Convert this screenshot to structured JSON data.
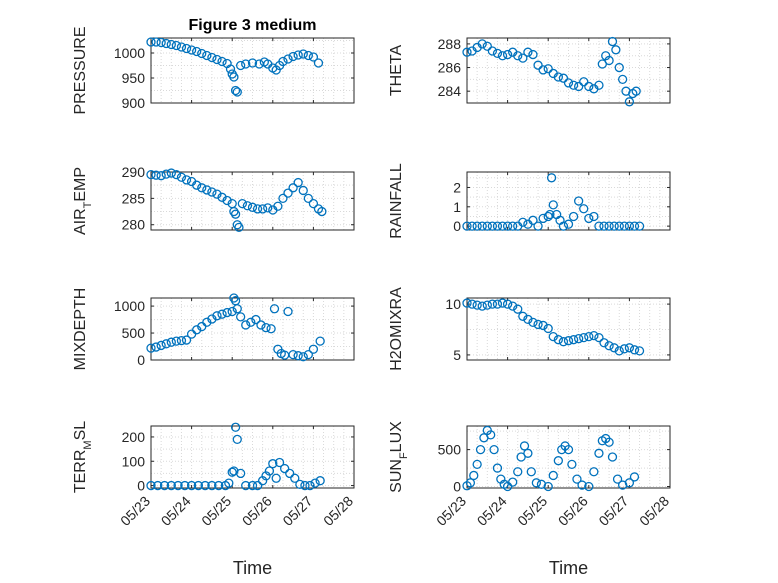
{
  "chart_data": [
    {
      "type": "scatter",
      "title": "Figure 3 medium",
      "ylabel": "PRESSURE",
      "xlabel": "",
      "ylim": [
        900,
        1030
      ],
      "yticks": [
        900,
        950,
        1000
      ],
      "xlim": [
        "05/23",
        "05/27 18:00"
      ],
      "grid": true,
      "marker": "circle",
      "x": [
        "05/23 00:00",
        "05/23 03:00",
        "05/23 06:00",
        "05/23 09:00",
        "05/23 12:00",
        "05/23 15:00",
        "05/23 18:00",
        "05/23 21:00",
        "05/24 00:00",
        "05/24 03:00",
        "05/24 06:00",
        "05/24 09:00",
        "05/24 12:00",
        "05/24 15:00",
        "05/24 18:00",
        "05/24 21:00",
        "05/24 23:00",
        "05/25 00:00",
        "05/25 01:00",
        "05/25 02:00",
        "05/25 03:00",
        "05/25 05:00",
        "05/25 08:00",
        "05/25 12:00",
        "05/25 16:00",
        "05/25 19:00",
        "05/25 21:00",
        "05/26 00:00",
        "05/26 02:00",
        "05/26 04:00",
        "05/26 06:00",
        "05/26 09:00",
        "05/26 12:00",
        "05/26 15:00",
        "05/26 18:00",
        "05/26 21:00",
        "05/27 00:00",
        "05/27 03:00"
      ],
      "y": [
        1022,
        1022,
        1021,
        1019,
        1017,
        1015,
        1012,
        1009,
        1006,
        1003,
        999,
        995,
        991,
        987,
        983,
        979,
        968,
        958,
        952,
        925,
        922,
        975,
        978,
        980,
        978,
        982,
        978,
        970,
        966,
        975,
        983,
        988,
        993,
        996,
        998,
        995,
        992,
        980
      ]
    },
    {
      "type": "scatter",
      "title": "",
      "ylabel": "THETA",
      "xlabel": "",
      "ylim": [
        283,
        288.5
      ],
      "yticks": [
        284,
        286,
        288
      ],
      "xlim": [
        "05/23",
        "05/27 18:00"
      ],
      "grid": true,
      "marker": "circle",
      "x": [
        "05/23 00:00",
        "05/23 03:00",
        "05/23 06:00",
        "05/23 09:00",
        "05/23 12:00",
        "05/23 15:00",
        "05/23 18:00",
        "05/23 21:00",
        "05/24 00:00",
        "05/24 03:00",
        "05/24 06:00",
        "05/24 09:00",
        "05/24 12:00",
        "05/24 15:00",
        "05/24 18:00",
        "05/24 21:00",
        "05/25 00:00",
        "05/25 03:00",
        "05/25 06:00",
        "05/25 09:00",
        "05/25 12:00",
        "05/25 15:00",
        "05/25 18:00",
        "05/25 21:00",
        "05/26 00:00",
        "05/26 03:00",
        "05/26 06:00",
        "05/26 08:00",
        "05/26 10:00",
        "05/26 12:00",
        "05/26 14:00",
        "05/26 16:00",
        "05/26 18:00",
        "05/26 20:00",
        "05/26 22:00",
        "05/27 00:00",
        "05/27 02:00",
        "05/27 04:00"
      ],
      "y": [
        287.3,
        287.4,
        287.7,
        288.0,
        287.8,
        287.4,
        287.2,
        287.0,
        287.1,
        287.3,
        287.0,
        286.8,
        287.3,
        287.1,
        286.2,
        285.8,
        285.9,
        285.5,
        285.2,
        285.1,
        284.7,
        284.5,
        284.4,
        284.8,
        284.4,
        284.2,
        284.5,
        286.3,
        287.0,
        286.6,
        288.2,
        287.5,
        286.0,
        285.0,
        284.0,
        283.1,
        283.8,
        284.0
      ]
    },
    {
      "type": "scatter",
      "title": "",
      "ylabel": "AIR_TEMP",
      "xlabel": "",
      "ylim": [
        279,
        290
      ],
      "yticks": [
        280,
        285,
        290
      ],
      "xlim": [
        "05/23",
        "05/27 18:00"
      ],
      "grid": true,
      "marker": "circle",
      "x": [
        "05/23 00:00",
        "05/23 03:00",
        "05/23 06:00",
        "05/23 09:00",
        "05/23 12:00",
        "05/23 15:00",
        "05/23 18:00",
        "05/23 21:00",
        "05/24 00:00",
        "05/24 03:00",
        "05/24 06:00",
        "05/24 09:00",
        "05/24 12:00",
        "05/24 15:00",
        "05/24 18:00",
        "05/24 21:00",
        "05/25 00:00",
        "05/25 01:00",
        "05/25 02:00",
        "05/25 03:00",
        "05/25 04:00",
        "05/25 06:00",
        "05/25 09:00",
        "05/25 12:00",
        "05/25 15:00",
        "05/25 18:00",
        "05/25 21:00",
        "05/26 00:00",
        "05/26 03:00",
        "05/26 06:00",
        "05/26 09:00",
        "05/26 12:00",
        "05/26 15:00",
        "05/26 18:00",
        "05/26 21:00",
        "05/27 00:00",
        "05/27 03:00",
        "05/27 05:00"
      ],
      "y": [
        289.5,
        289.4,
        289.3,
        289.6,
        289.8,
        289.5,
        289.0,
        288.5,
        288.2,
        287.5,
        287.0,
        286.6,
        286.2,
        285.8,
        285.2,
        284.6,
        284.0,
        282.5,
        282.0,
        280.0,
        279.5,
        284.0,
        283.6,
        283.3,
        283.0,
        283.0,
        283.2,
        282.8,
        283.5,
        285.0,
        286.0,
        287.0,
        288.0,
        286.5,
        285.0,
        284.0,
        283.0,
        282.5
      ]
    },
    {
      "type": "scatter",
      "title": "",
      "ylabel": "RAINFALL",
      "xlabel": "",
      "ylim": [
        -0.2,
        2.8
      ],
      "yticks": [
        0,
        1,
        2
      ],
      "xlim": [
        "05/23",
        "05/27 18:00"
      ],
      "grid": true,
      "marker": "circle",
      "x": [
        "05/23 00:00",
        "05/23 03:00",
        "05/23 06:00",
        "05/23 09:00",
        "05/23 12:00",
        "05/23 15:00",
        "05/23 18:00",
        "05/23 21:00",
        "05/24 00:00",
        "05/24 03:00",
        "05/24 06:00",
        "05/24 09:00",
        "05/24 12:00",
        "05/24 15:00",
        "05/24 18:00",
        "05/24 21:00",
        "05/25 00:00",
        "05/25 01:00",
        "05/25 02:00",
        "05/25 03:00",
        "05/25 05:00",
        "05/25 07:00",
        "05/25 09:00",
        "05/25 12:00",
        "05/25 15:00",
        "05/25 18:00",
        "05/25 21:00",
        "05/26 00:00",
        "05/26 03:00",
        "05/26 06:00",
        "05/26 09:00",
        "05/26 12:00",
        "05/26 15:00",
        "05/26 18:00",
        "05/26 21:00",
        "05/27 00:00",
        "05/27 03:00",
        "05/27 06:00"
      ],
      "y": [
        0,
        0,
        0,
        0,
        0,
        0,
        0,
        0,
        0,
        0,
        0,
        0.2,
        0.1,
        0.3,
        0,
        0.4,
        0.5,
        0.6,
        2.5,
        1.1,
        0.6,
        0.3,
        0,
        0.1,
        0.5,
        1.3,
        0.9,
        0.4,
        0.5,
        0,
        0,
        0,
        0,
        0,
        0,
        0,
        0,
        0
      ]
    },
    {
      "type": "scatter",
      "title": "",
      "ylabel": "MIXDEPTH",
      "xlabel": "",
      "ylim": [
        0,
        1150
      ],
      "yticks": [
        0,
        500,
        1000
      ],
      "xlim": [
        "05/23",
        "05/27 18:00"
      ],
      "grid": true,
      "marker": "circle",
      "x": [
        "05/23 00:00",
        "05/23 03:00",
        "05/23 06:00",
        "05/23 09:00",
        "05/23 12:00",
        "05/23 15:00",
        "05/23 18:00",
        "05/23 21:00",
        "05/24 00:00",
        "05/24 03:00",
        "05/24 06:00",
        "05/24 09:00",
        "05/24 12:00",
        "05/24 15:00",
        "05/24 18:00",
        "05/24 21:00",
        "05/25 00:00",
        "05/25 01:00",
        "05/25 02:00",
        "05/25 03:00",
        "05/25 05:00",
        "05/25 08:00",
        "05/25 11:00",
        "05/25 14:00",
        "05/25 17:00",
        "05/25 20:00",
        "05/25 23:00",
        "05/26 01:00",
        "05/26 03:00",
        "05/26 05:00",
        "05/26 07:00",
        "05/26 09:00",
        "05/26 12:00",
        "05/26 15:00",
        "05/26 18:00",
        "05/26 21:00",
        "05/27 00:00",
        "05/27 04:00"
      ],
      "y": [
        220,
        240,
        270,
        300,
        330,
        350,
        360,
        370,
        480,
        560,
        620,
        700,
        760,
        820,
        850,
        880,
        900,
        1150,
        1100,
        950,
        800,
        650,
        700,
        750,
        650,
        600,
        580,
        950,
        200,
        120,
        90,
        900,
        100,
        80,
        60,
        100,
        200,
        350
      ]
    },
    {
      "type": "scatter",
      "title": "",
      "ylabel": "H2OMIXRA",
      "xlabel": "",
      "ylim": [
        4.5,
        10.6
      ],
      "yticks": [
        5,
        10
      ],
      "xlim": [
        "05/23",
        "05/27 18:00"
      ],
      "grid": true,
      "marker": "circle",
      "x": [
        "05/23 00:00",
        "05/23 03:00",
        "05/23 06:00",
        "05/23 09:00",
        "05/23 12:00",
        "05/23 15:00",
        "05/23 18:00",
        "05/23 21:00",
        "05/24 00:00",
        "05/24 03:00",
        "05/24 06:00",
        "05/24 09:00",
        "05/24 12:00",
        "05/24 15:00",
        "05/24 18:00",
        "05/24 21:00",
        "05/25 00:00",
        "05/25 03:00",
        "05/25 06:00",
        "05/25 09:00",
        "05/25 12:00",
        "05/25 15:00",
        "05/25 18:00",
        "05/25 21:00",
        "05/26 00:00",
        "05/26 03:00",
        "05/26 06:00",
        "05/26 09:00",
        "05/26 12:00",
        "05/26 15:00",
        "05/26 18:00",
        "05/26 21:00",
        "05/27 00:00",
        "05/27 03:00",
        "05/27 06:00"
      ],
      "y": [
        10.1,
        10.0,
        9.9,
        9.8,
        9.9,
        10.0,
        10.0,
        10.1,
        10.0,
        9.8,
        9.5,
        8.8,
        8.5,
        8.2,
        8.0,
        7.9,
        7.6,
        6.8,
        6.5,
        6.3,
        6.4,
        6.5,
        6.6,
        6.7,
        6.8,
        6.9,
        6.7,
        6.2,
        5.9,
        5.7,
        5.4,
        5.6,
        5.7,
        5.5,
        5.4
      ]
    },
    {
      "type": "scatter",
      "title": "",
      "ylabel": "TERR_MSL",
      "xlabel": "Time",
      "ylim": [
        -10,
        245
      ],
      "yticks": [
        0,
        100,
        200
      ],
      "xlim": [
        "05/23",
        "05/28"
      ],
      "xticks": [
        "05/23",
        "05/24",
        "05/25",
        "05/26",
        "05/27",
        "05/28"
      ],
      "grid": true,
      "marker": "circle",
      "x": [
        "05/23 00:00",
        "05/23 04:00",
        "05/23 08:00",
        "05/23 12:00",
        "05/23 16:00",
        "05/23 20:00",
        "05/24 00:00",
        "05/24 04:00",
        "05/24 08:00",
        "05/24 12:00",
        "05/24 16:00",
        "05/24 20:00",
        "05/24 22:00",
        "05/25 00:00",
        "05/25 01:00",
        "05/25 02:00",
        "05/25 03:00",
        "05/25 05:00",
        "05/25 08:00",
        "05/25 12:00",
        "05/25 15:00",
        "05/25 18:00",
        "05/25 20:00",
        "05/25 22:00",
        "05/26 00:00",
        "05/26 02:00",
        "05/26 04:00",
        "05/26 07:00",
        "05/26 10:00",
        "05/26 13:00",
        "05/26 16:00",
        "05/26 19:00",
        "05/26 22:00",
        "05/27 01:00",
        "05/27 04:00"
      ],
      "y": [
        0,
        0,
        0,
        0,
        0,
        0,
        0,
        0,
        0,
        0,
        0,
        0,
        10,
        55,
        60,
        240,
        190,
        50,
        0,
        0,
        0,
        20,
        40,
        60,
        90,
        30,
        95,
        70,
        50,
        30,
        5,
        0,
        0,
        10,
        20
      ]
    },
    {
      "type": "scatter",
      "title": "",
      "ylabel": "SUN_FLUX",
      "xlabel": "Time",
      "ylim": [
        -20,
        820
      ],
      "yticks": [
        0,
        500
      ],
      "xlim": [
        "05/23",
        "05/28"
      ],
      "xticks": [
        "05/23",
        "05/24",
        "05/25",
        "05/26",
        "05/27",
        "05/28"
      ],
      "grid": true,
      "marker": "circle",
      "x": [
        "05/23 00:00",
        "05/23 02:00",
        "05/23 04:00",
        "05/23 06:00",
        "05/23 08:00",
        "05/23 10:00",
        "05/23 12:00",
        "05/23 14:00",
        "05/23 16:00",
        "05/23 18:00",
        "05/23 20:00",
        "05/23 22:00",
        "05/24 00:00",
        "05/24 03:00",
        "05/24 06:00",
        "05/24 08:00",
        "05/24 10:00",
        "05/24 12:00",
        "05/24 14:00",
        "05/24 17:00",
        "05/24 20:00",
        "05/25 00:00",
        "05/25 03:00",
        "05/25 06:00",
        "05/25 08:00",
        "05/25 10:00",
        "05/25 12:00",
        "05/25 14:00",
        "05/25 17:00",
        "05/25 20:00",
        "05/26 00:00",
        "05/26 03:00",
        "05/26 06:00",
        "05/26 08:00",
        "05/26 10:00",
        "05/26 12:00",
        "05/26 14:00",
        "05/26 17:00",
        "05/26 20:00",
        "05/27 00:00",
        "05/27 03:00"
      ],
      "y": [
        10,
        50,
        150,
        300,
        500,
        660,
        760,
        700,
        500,
        250,
        100,
        30,
        0,
        60,
        200,
        400,
        550,
        450,
        200,
        50,
        30,
        0,
        150,
        350,
        500,
        550,
        500,
        300,
        100,
        20,
        0,
        200,
        450,
        620,
        650,
        600,
        400,
        100,
        20,
        50,
        130
      ]
    }
  ]
}
